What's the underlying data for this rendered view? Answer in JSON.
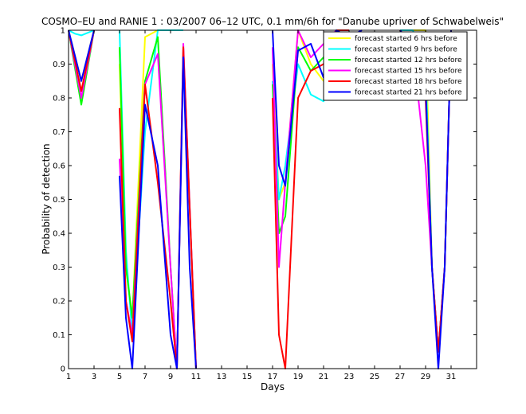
{
  "chart_data": {
    "type": "line",
    "title": "COSMO–EU and RANIE 1 : 03/2007 06–12 UTC, 0.1 mm/6h for \"Danube upriver of Schwabelweis\"",
    "xlabel": "Days",
    "ylabel": "Probability of detection",
    "xlim": [
      1,
      33
    ],
    "ylim": [
      0,
      1
    ],
    "xticks": [
      "1",
      "3",
      "5",
      "7",
      "9",
      "11",
      "13",
      "15",
      "17",
      "19",
      "21",
      "23",
      "25",
      "27",
      "29",
      "31"
    ],
    "yticks": [
      "0",
      "0.1",
      "0.2",
      "0.3",
      "0.4",
      "0.5",
      "0.6",
      "0.7",
      "0.8",
      "0.9",
      "1"
    ],
    "grid": false,
    "legend_position": "top-right",
    "series": [
      {
        "name": "forecast started 6 hrs before",
        "color": "#ffff00",
        "points": [
          [
            1,
            1
          ],
          [
            2,
            0.85
          ],
          [
            3,
            1
          ],
          [
            null,
            null
          ],
          [
            5,
            0.9
          ],
          [
            5.5,
            0.3
          ],
          [
            6,
            0.15
          ],
          [
            7,
            0.98
          ],
          [
            8,
            1
          ],
          [
            9,
            1
          ],
          [
            10,
            1
          ],
          [
            null,
            null
          ],
          [
            17,
            0.9
          ],
          [
            17.5,
            0.5
          ],
          [
            18,
            0.55
          ],
          [
            19,
            1
          ],
          [
            20,
            0.9
          ],
          [
            21,
            0.85
          ],
          [
            22,
            1
          ],
          [
            23,
            1
          ],
          [
            null,
            null
          ],
          [
            27,
            1
          ],
          [
            28,
            1
          ],
          [
            29,
            1
          ],
          [
            29.5,
            0.3
          ],
          [
            30,
            0.05
          ],
          [
            30.5,
            0.3
          ],
          [
            31,
            1
          ]
        ]
      },
      {
        "name": "forecast started 9 hrs before",
        "color": "#00ffff",
        "points": [
          [
            1,
            1
          ],
          [
            1.5,
            0.99
          ],
          [
            2,
            0.985
          ],
          [
            3,
            1
          ],
          [
            null,
            null
          ],
          [
            5,
            1
          ],
          [
            5.5,
            0.35
          ],
          [
            6,
            0.1
          ],
          [
            7,
            0.7
          ],
          [
            8,
            1
          ],
          [
            9,
            1
          ],
          [
            10,
            1
          ],
          [
            null,
            null
          ],
          [
            17,
            0.85
          ],
          [
            17.5,
            0.5
          ],
          [
            18,
            0.6
          ],
          [
            19,
            0.9
          ],
          [
            20,
            0.81
          ],
          [
            21,
            0.79
          ],
          [
            22,
            1
          ],
          [
            23,
            1
          ],
          [
            null,
            null
          ],
          [
            27,
            1
          ],
          [
            28,
            1
          ],
          [
            29,
            0.9
          ],
          [
            29.5,
            0.3
          ],
          [
            30,
            0.05
          ],
          [
            30.5,
            0.3
          ],
          [
            31,
            1
          ]
        ]
      },
      {
        "name": "forecast started 12 hrs before",
        "color": "#00ff00",
        "points": [
          [
            1,
            1
          ],
          [
            2,
            0.78
          ],
          [
            3,
            1
          ],
          [
            null,
            null
          ],
          [
            5,
            0.95
          ],
          [
            5.5,
            0.3
          ],
          [
            6,
            0.15
          ],
          [
            7,
            0.85
          ],
          [
            8,
            0.98
          ],
          [
            9,
            0.3
          ],
          [
            9.5,
            0
          ],
          [
            10,
            0.95
          ],
          [
            11,
            0
          ],
          [
            null,
            null
          ],
          [
            17,
            0.84
          ],
          [
            17.5,
            0.4
          ],
          [
            18,
            0.45
          ],
          [
            19,
            0.95
          ],
          [
            20,
            0.88
          ],
          [
            21,
            0.92
          ],
          [
            22,
            1
          ],
          [
            23,
            1
          ],
          [
            null,
            null
          ],
          [
            27,
            1
          ],
          [
            28,
            0.95
          ],
          [
            29,
            0.85
          ],
          [
            29.5,
            0.3
          ],
          [
            30,
            0.05
          ],
          [
            30.5,
            0.3
          ],
          [
            31,
            1
          ]
        ]
      },
      {
        "name": "forecast started 15 hrs before",
        "color": "#ff00ff",
        "points": [
          [
            1,
            1
          ],
          [
            2,
            0.8
          ],
          [
            3,
            1
          ],
          [
            null,
            null
          ],
          [
            5,
            0.62
          ],
          [
            5.5,
            0.2
          ],
          [
            6,
            0.1
          ],
          [
            7,
            0.84
          ],
          [
            8,
            0.93
          ],
          [
            9,
            0.3
          ],
          [
            9.5,
            0
          ],
          [
            10,
            0.96
          ],
          [
            11,
            0
          ],
          [
            null,
            null
          ],
          [
            17,
            0.95
          ],
          [
            17.5,
            0.3
          ],
          [
            18,
            0.55
          ],
          [
            19,
            1
          ],
          [
            20,
            0.92
          ],
          [
            21,
            0.96
          ],
          [
            22,
            1
          ],
          [
            23,
            1
          ],
          [
            null,
            null
          ],
          [
            27,
            1
          ],
          [
            28,
            0.95
          ],
          [
            29,
            0.6
          ],
          [
            29.5,
            0.3
          ],
          [
            30,
            0.05
          ],
          [
            30.5,
            0.3
          ],
          [
            31,
            1
          ]
        ]
      },
      {
        "name": "forecast started 18 hrs before",
        "color": "#ff0000",
        "points": [
          [
            1,
            1
          ],
          [
            2,
            0.82
          ],
          [
            3,
            1
          ],
          [
            null,
            null
          ],
          [
            5,
            0.77
          ],
          [
            5.5,
            0.2
          ],
          [
            6,
            0.08
          ],
          [
            7,
            0.84
          ],
          [
            8,
            0.55
          ],
          [
            9,
            0.2
          ],
          [
            9.5,
            0
          ],
          [
            10,
            0.95
          ],
          [
            11,
            0
          ],
          [
            null,
            null
          ],
          [
            17,
            0.8
          ],
          [
            17.5,
            0.1
          ],
          [
            18,
            0.0
          ],
          [
            19,
            0.8
          ],
          [
            20,
            0.88
          ],
          [
            21,
            0.9
          ],
          [
            22,
            1
          ],
          [
            23,
            1
          ],
          [
            null,
            null
          ],
          [
            27,
            1
          ],
          [
            28,
            0.95
          ],
          [
            29,
            0.8
          ],
          [
            29.5,
            0.3
          ],
          [
            30,
            0.05
          ],
          [
            30.5,
            0.3
          ],
          [
            31,
            1
          ]
        ]
      },
      {
        "name": "forecast started 21 hrs before",
        "color": "#0000ff",
        "points": [
          [
            1,
            1
          ],
          [
            2,
            0.85
          ],
          [
            3,
            1
          ],
          [
            null,
            null
          ],
          [
            5,
            0.57
          ],
          [
            5.5,
            0.15
          ],
          [
            6,
            0.0
          ],
          [
            7,
            0.78
          ],
          [
            8,
            0.6
          ],
          [
            9,
            0.1
          ],
          [
            9.5,
            0
          ],
          [
            10,
            0.92
          ],
          [
            10.5,
            0.3
          ],
          [
            11,
            0
          ],
          [
            null,
            null
          ],
          [
            17,
            1
          ],
          [
            17.5,
            0.6
          ],
          [
            18,
            0.54
          ],
          [
            19,
            0.94
          ],
          [
            20,
            0.96
          ],
          [
            21,
            0.86
          ],
          [
            22,
            1
          ],
          [
            23,
            0.98
          ],
          [
            24,
            1
          ],
          [
            null,
            null
          ],
          [
            27,
            1
          ],
          [
            28,
            0.95
          ],
          [
            29,
            0.84
          ],
          [
            29.5,
            0.3
          ],
          [
            30,
            0.0
          ],
          [
            30.5,
            0.3
          ],
          [
            31,
            1
          ]
        ]
      }
    ]
  }
}
